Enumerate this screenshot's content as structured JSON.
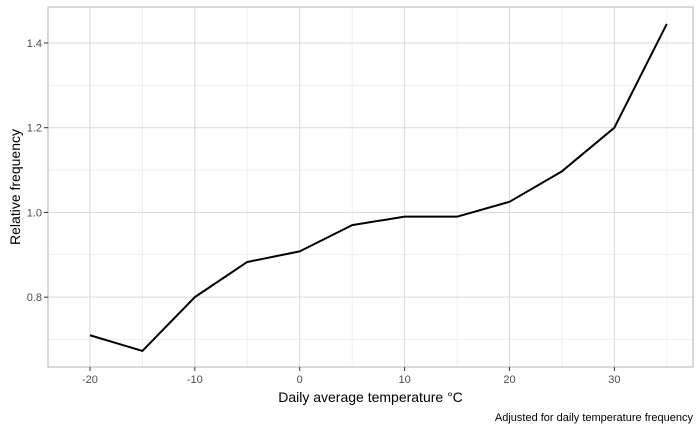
{
  "chart_data": {
    "type": "line",
    "x": [
      -20,
      -15,
      -10,
      -5,
      0,
      5,
      10,
      15,
      20,
      25,
      30,
      35
    ],
    "series": [
      {
        "values": [
          0.71,
          0.673,
          0.8,
          0.883,
          0.908,
          0.97,
          0.99,
          0.99,
          1.025,
          1.097,
          1.2,
          1.445
        ],
        "color": "#000000"
      }
    ],
    "xlabel": "Daily average temperature °C",
    "ylabel": "Relative frequency",
    "caption": "Adjusted for daily temperature frequency",
    "x_ticks": [
      -20,
      -10,
      0,
      10,
      20,
      30
    ],
    "x_tick_labels": [
      "-20",
      "-10",
      "0",
      "10",
      "20",
      "30"
    ],
    "y_ticks": [
      0.8,
      1.0,
      1.2,
      1.4
    ],
    "y_tick_labels": [
      "0.8",
      "1.0",
      "1.2",
      "1.4"
    ],
    "xlim": [
      -24,
      37.5
    ],
    "ylim": [
      0.635,
      1.485
    ],
    "grid": true
  }
}
